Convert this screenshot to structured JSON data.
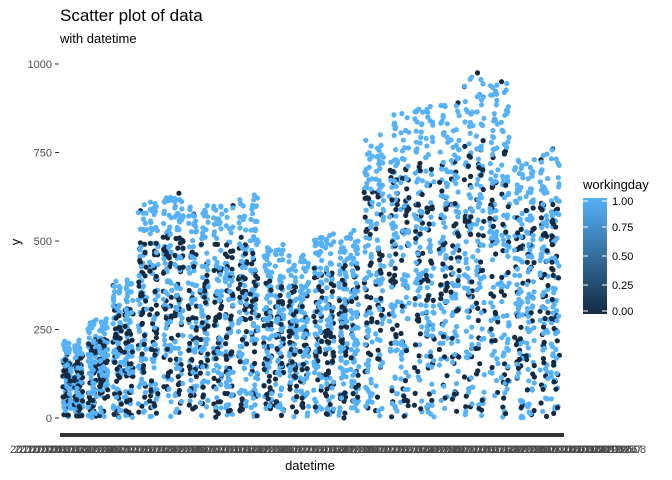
{
  "chart_data": {
    "type": "scatter",
    "title": "Scatter plot of data",
    "subtitle": "with datetime",
    "xlabel": "datetime",
    "ylabel": "y",
    "ylim": [
      0,
      1000
    ],
    "y_ticks": [
      0,
      250,
      500,
      750,
      1000
    ],
    "y_tick_labels": [
      "0",
      "250",
      "500",
      "750",
      "1000"
    ],
    "grid": false,
    "legend": {
      "title": "workingday",
      "position": "right",
      "type": "colorbar",
      "range": [
        0,
        1
      ],
      "ticks": [
        1.0,
        0.75,
        0.5,
        0.25,
        0.0
      ],
      "tick_labels": [
        "1.00",
        "0.75",
        "0.50",
        "0.25",
        "0.00"
      ],
      "color_low": "#132B43",
      "color_high": "#56B1F7"
    },
    "x_tick_labels_overplotted": true,
    "month_groups": [
      {
        "label": "2011-01",
        "max_y": 220,
        "clusters": 2
      },
      {
        "label": "2011-02",
        "max_y": 280,
        "clusters": 2
      },
      {
        "label": "2011-03",
        "max_y": 390,
        "clusters": 2
      },
      {
        "label": "2011-04",
        "max_y": 610,
        "clusters": 2
      },
      {
        "label": "2011-05",
        "max_y": 635,
        "clusters": 2
      },
      {
        "label": "2011-06",
        "max_y": 600,
        "clusters": 2
      },
      {
        "label": "2011-07",
        "max_y": 600,
        "clusters": 2
      },
      {
        "label": "2011-08",
        "max_y": 630,
        "clusters": 2
      },
      {
        "label": "2011-09",
        "max_y": 490,
        "clusters": 2
      },
      {
        "label": "2011-10",
        "max_y": 460,
        "clusters": 2
      },
      {
        "label": "2011-11",
        "max_y": 520,
        "clusters": 2
      },
      {
        "label": "2011-12",
        "max_y": 530,
        "clusters": 2
      },
      {
        "label": "2012-01",
        "max_y": 800,
        "clusters": 2
      },
      {
        "label": "2012-02",
        "max_y": 860,
        "clusters": 2
      },
      {
        "label": "2012-03",
        "max_y": 880,
        "clusters": 2
      },
      {
        "label": "2012-04",
        "max_y": 890,
        "clusters": 2
      },
      {
        "label": "2012-05",
        "max_y": 975,
        "clusters": 2
      },
      {
        "label": "2012-06",
        "max_y": 950,
        "clusters": 2
      },
      {
        "label": "2012-07",
        "max_y": 730,
        "clusters": 2
      },
      {
        "label": "2012-08",
        "max_y": 760,
        "clusters": 2
      }
    ]
  },
  "colors": {
    "working": "#56B1F7",
    "nonworking": "#132B43",
    "axis_bar": "#333333",
    "tick_label": "#4d4d4d"
  }
}
